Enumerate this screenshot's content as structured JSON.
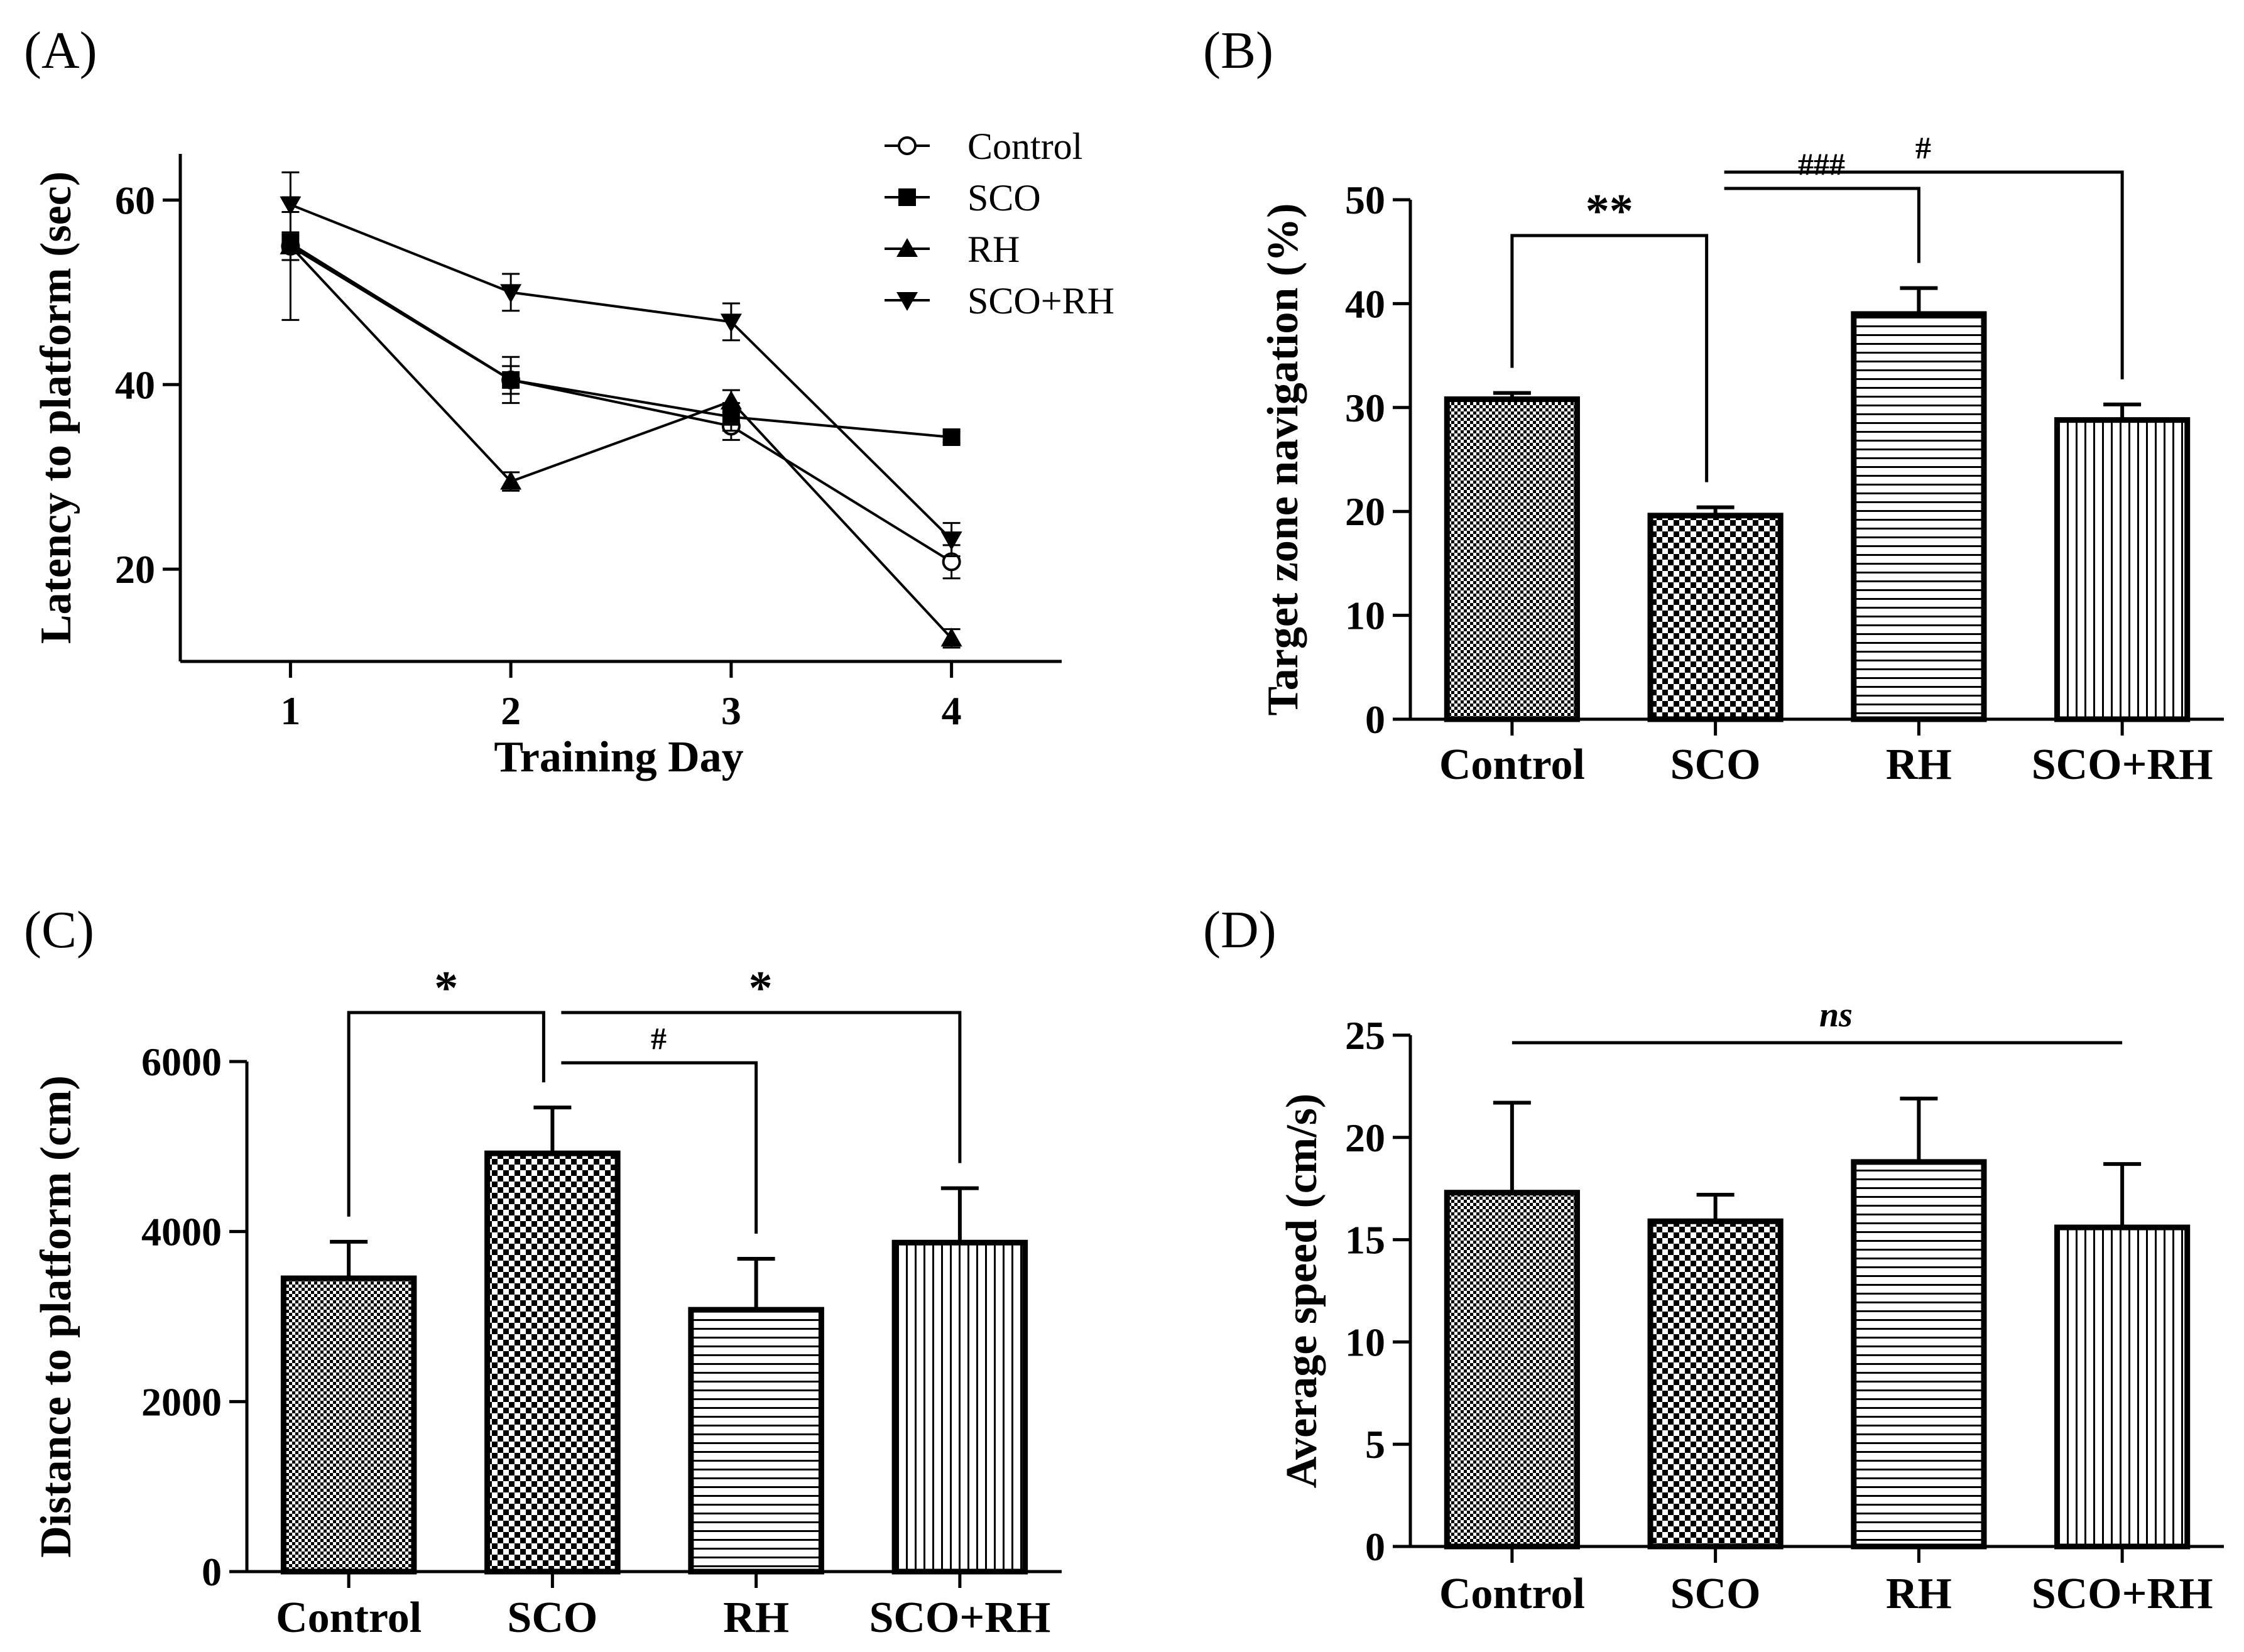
{
  "chart_data": [
    {
      "panel": "(A)",
      "type": "line",
      "xlabel": "Training Day",
      "ylabel": "Latency to platform (sec)",
      "x": [
        1,
        2,
        3,
        4
      ],
      "xticks": [
        "1",
        "2",
        "3",
        "4"
      ],
      "xlim": [
        0.5,
        4.5
      ],
      "ylim": [
        10,
        65
      ],
      "yticks": [
        20,
        40,
        60
      ],
      "legend": "top-right",
      "series": [
        {
          "name": "Control",
          "marker": "circle-open",
          "values": [
            55,
            40.5,
            35.5,
            20.8
          ],
          "errors": [
            1.5,
            1.5,
            1.5,
            1.8
          ]
        },
        {
          "name": "SCO",
          "marker": "square",
          "values": [
            55.3,
            40.5,
            36.5,
            34.3
          ],
          "errors": [
            1.0,
            2.5,
            1.5,
            0.6
          ]
        },
        {
          "name": "RH",
          "marker": "triangle-up",
          "values": [
            55,
            29.5,
            38.2,
            12.5
          ],
          "errors": [
            8.0,
            1.0,
            1.2,
            1.0
          ]
        },
        {
          "name": "SCO+RH",
          "marker": "triangle-down",
          "values": [
            59.5,
            50,
            46.8,
            23.2
          ],
          "errors": [
            0.8,
            2.0,
            2.0,
            1.8
          ]
        }
      ]
    },
    {
      "panel": "(B)",
      "type": "bar",
      "categories": [
        "Control",
        "SCO",
        "RH",
        "SCO+RH"
      ],
      "values": [
        30.8,
        19.6,
        39.0,
        28.8
      ],
      "errors": [
        0.6,
        0.8,
        2.5,
        1.5
      ],
      "ylabel": "Target zone navigation (%)",
      "ylim": [
        0,
        50
      ],
      "yticks": [
        0,
        10,
        20,
        30,
        40,
        50
      ],
      "patterns": [
        "fine-checker",
        "checker",
        "horizontal",
        "vertical"
      ],
      "significance": [
        {
          "from": 0,
          "to": 1,
          "label": "**"
        },
        {
          "from": 1,
          "to": 2,
          "label": "###"
        },
        {
          "from": 1,
          "to": 3,
          "label": "#"
        }
      ]
    },
    {
      "panel": "(C)",
      "type": "bar",
      "categories": [
        "Control",
        "SCO",
        "RH",
        "SCO+RH"
      ],
      "values": [
        3450,
        4920,
        3080,
        3870
      ],
      "errors": [
        430,
        540,
        600,
        640
      ],
      "ylabel": "Distance to platform (cm)",
      "ylim": [
        0,
        6000
      ],
      "yticks": [
        0,
        2000,
        4000,
        6000
      ],
      "patterns": [
        "fine-checker",
        "checker",
        "horizontal",
        "vertical"
      ],
      "significance": [
        {
          "from": 0,
          "to": 1,
          "label": "*"
        },
        {
          "from": 1,
          "to": 2,
          "label": "#"
        },
        {
          "from": 1,
          "to": 3,
          "label": "*"
        }
      ]
    },
    {
      "panel": "(D)",
      "type": "bar",
      "categories": [
        "Control",
        "SCO",
        "RH",
        "SCO+RH"
      ],
      "values": [
        17.3,
        15.9,
        18.8,
        15.6
      ],
      "errors": [
        4.4,
        1.3,
        3.1,
        3.1
      ],
      "ylabel": "Average speed (cm/s)",
      "ylim": [
        0,
        25
      ],
      "yticks": [
        0,
        5,
        10,
        15,
        20,
        25
      ],
      "patterns": [
        "fine-checker",
        "checker",
        "horizontal",
        "vertical"
      ],
      "significance": [
        {
          "from": 0,
          "to": 3,
          "label": "ns"
        }
      ]
    }
  ]
}
